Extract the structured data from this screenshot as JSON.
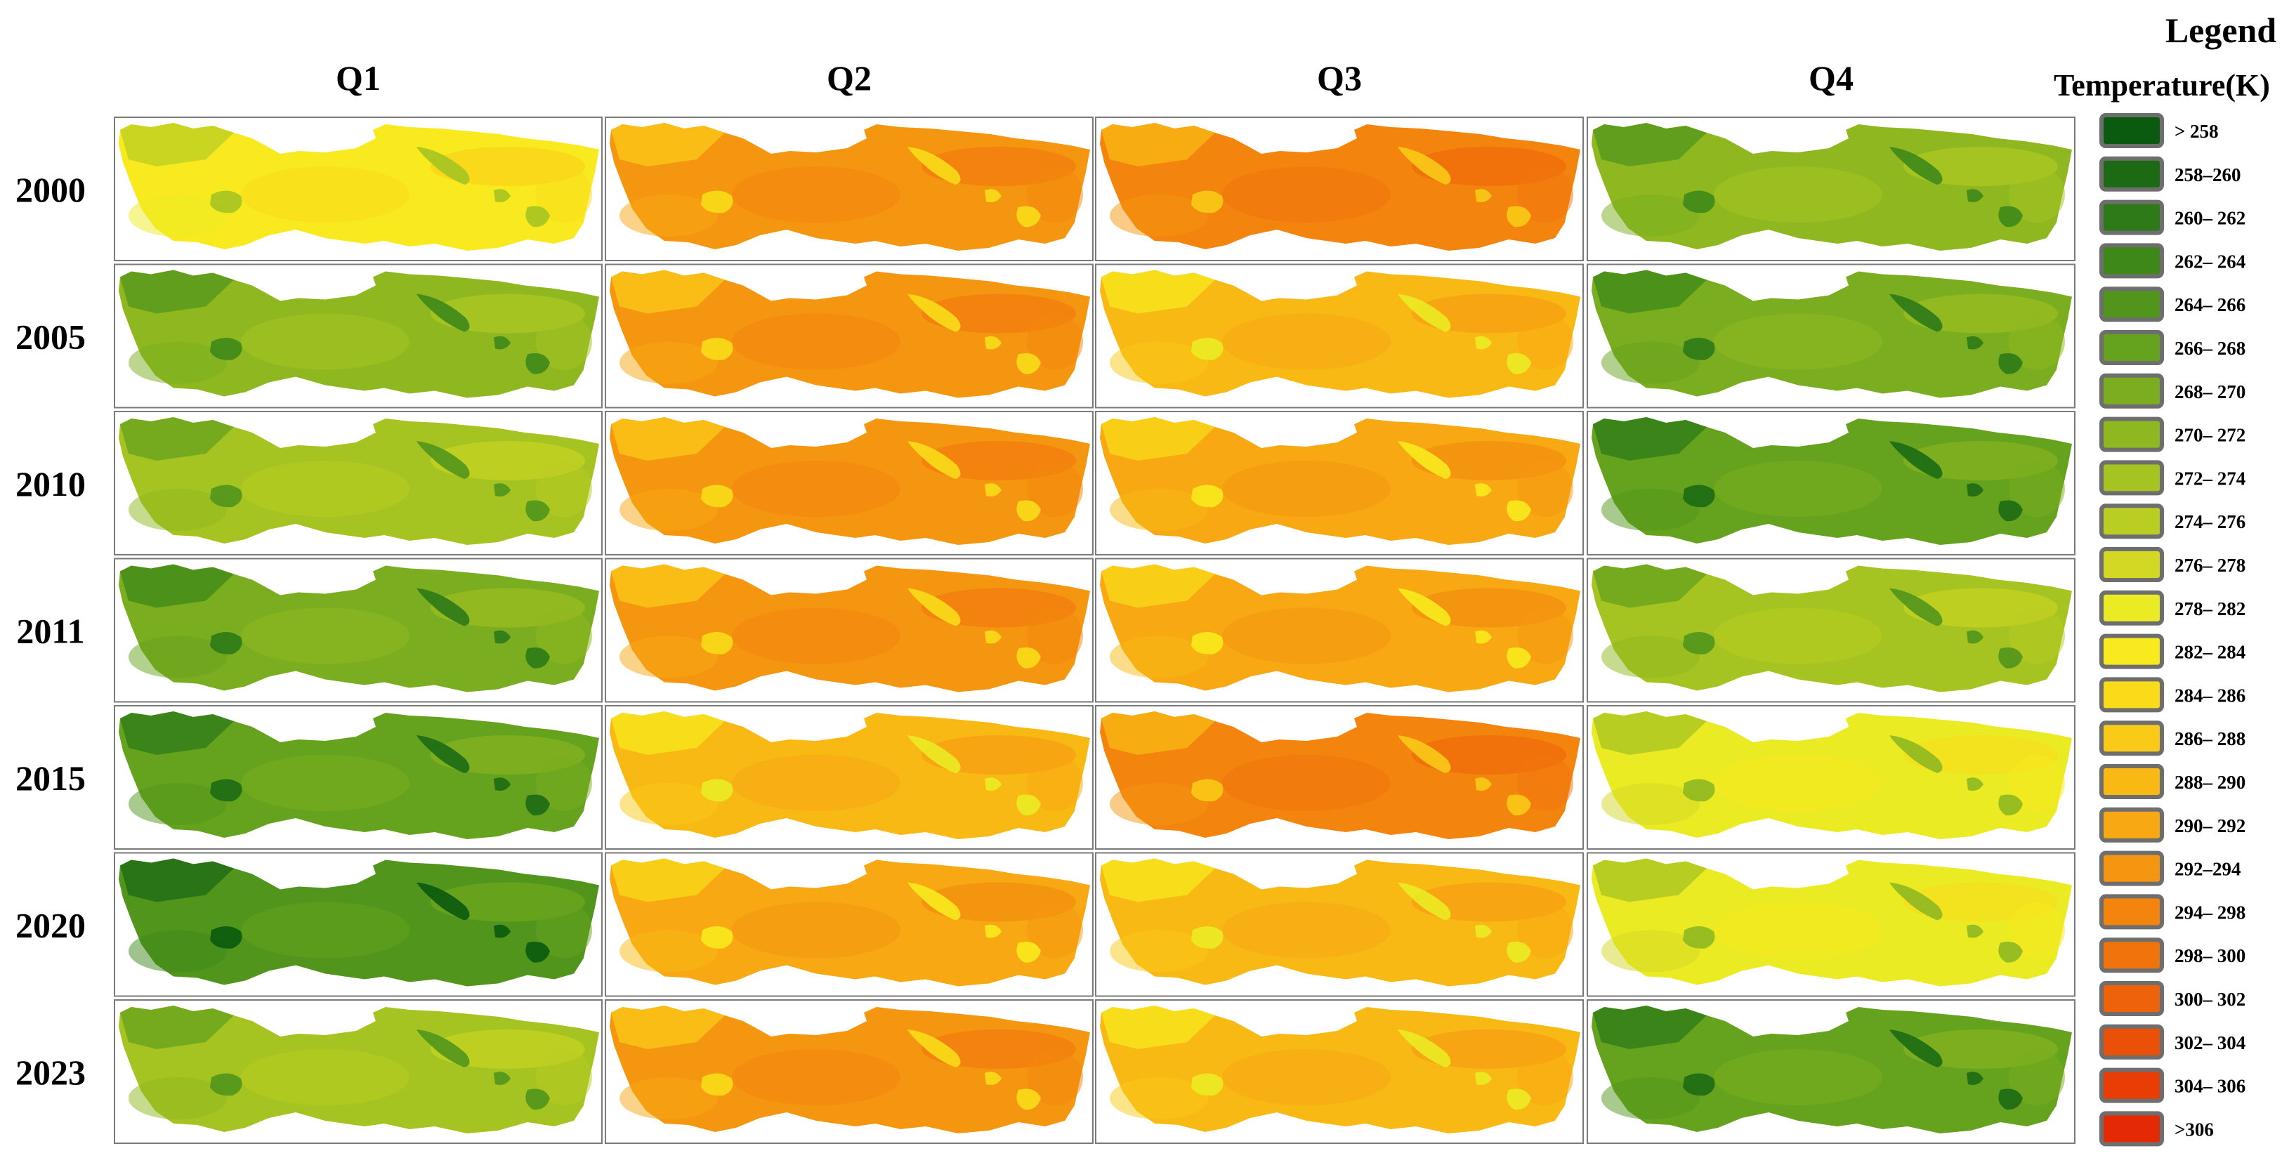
{
  "columns": [
    "Q1",
    "Q2",
    "Q3",
    "Q4"
  ],
  "rows": [
    "2000",
    "2005",
    "2010",
    "2011",
    "2015",
    "2020",
    "2023"
  ],
  "legend": {
    "title": "Legend",
    "subtitle": "Temperature(K)",
    "classes": [
      {
        "label": "> 258",
        "color": "#0a5a10"
      },
      {
        "label": "258–260",
        "color": "#1c6a14"
      },
      {
        "label": "260– 262",
        "color": "#2e7a18"
      },
      {
        "label": "262– 264",
        "color": "#3e881a"
      },
      {
        "label": "264– 266",
        "color": "#51951c"
      },
      {
        "label": "266– 268",
        "color": "#65a21e"
      },
      {
        "label": "268– 270",
        "color": "#7aad1f"
      },
      {
        "label": "270– 272",
        "color": "#8fb820"
      },
      {
        "label": "272– 274",
        "color": "#a5c321"
      },
      {
        "label": "274– 276",
        "color": "#bacd22"
      },
      {
        "label": "276– 278",
        "color": "#d2d823"
      },
      {
        "label": "278– 282",
        "color": "#ebeb24"
      },
      {
        "label": "282– 284",
        "color": "#f8ea1e"
      },
      {
        "label": "284– 286",
        "color": "#fadb1a"
      },
      {
        "label": "286– 288",
        "color": "#f9ca17"
      },
      {
        "label": "288– 290",
        "color": "#f8b914"
      },
      {
        "label": "290– 292",
        "color": "#f7a812"
      },
      {
        "label": "292–294",
        "color": "#f59610"
      },
      {
        "label": "294– 298",
        "color": "#f3850e"
      },
      {
        "label": "298– 300",
        "color": "#f1730c"
      },
      {
        "label": "300– 302",
        "color": "#ee620a"
      },
      {
        "label": "302– 304",
        "color": "#eb5008"
      },
      {
        "label": "304– 306",
        "color": "#e83e06"
      },
      {
        "label": ">306",
        "color": "#e32a04"
      }
    ]
  },
  "map_values": [
    {
      "year": "2000",
      "classes": [
        12,
        17,
        18,
        7
      ]
    },
    {
      "year": "2005",
      "classes": [
        7,
        17,
        15,
        6
      ]
    },
    {
      "year": "2010",
      "classes": [
        8,
        17,
        16,
        5
      ]
    },
    {
      "year": "2011",
      "classes": [
        6,
        17,
        16,
        8
      ]
    },
    {
      "year": "2015",
      "classes": [
        5,
        15,
        18,
        11
      ]
    },
    {
      "year": "2020",
      "classes": [
        4,
        16,
        15,
        11
      ]
    },
    {
      "year": "2023",
      "classes": [
        8,
        17,
        15,
        5
      ]
    }
  ]
}
